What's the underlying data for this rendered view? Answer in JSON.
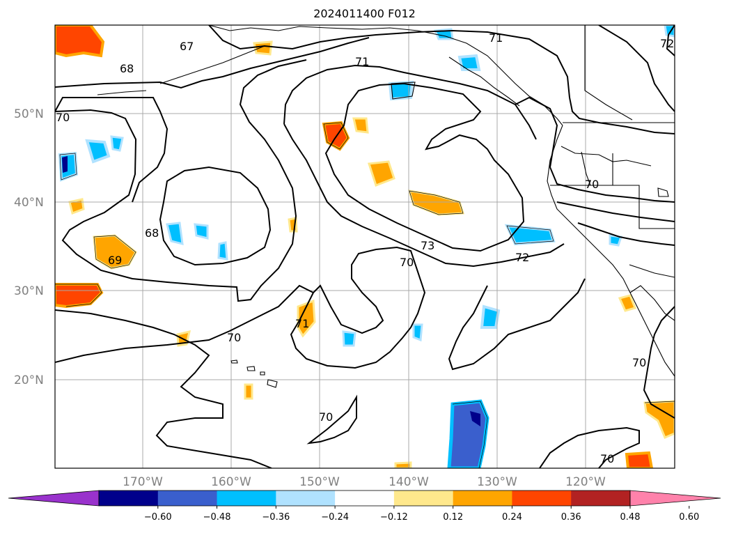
{
  "title": "2024011400 F012",
  "map": {
    "lat_labels": [
      "50°N",
      "40°N",
      "30°N",
      "20°N"
    ],
    "lon_labels": [
      "170°W",
      "160°W",
      "150°W",
      "140°W",
      "130°W",
      "120°W"
    ],
    "contour_labels": [
      "67",
      "68",
      "70",
      "71",
      "71",
      "70",
      "68",
      "69",
      "73",
      "70",
      "72",
      "70",
      "71",
      "70",
      "70",
      "70",
      "72"
    ]
  },
  "colorbar": {
    "ticks": [
      "−0.60",
      "−0.48",
      "−0.36",
      "−0.24",
      "−0.12",
      "0.12",
      "0.24",
      "0.36",
      "0.48",
      "0.60"
    ],
    "colors": [
      "#9932cc",
      "#00008b",
      "#3a5fcd",
      "#00bfff",
      "#b0e2ff",
      "#ffffff",
      "#ffe88c",
      "#ffa500",
      "#ff4500",
      "#b22222",
      "#ff82ab"
    ]
  }
}
